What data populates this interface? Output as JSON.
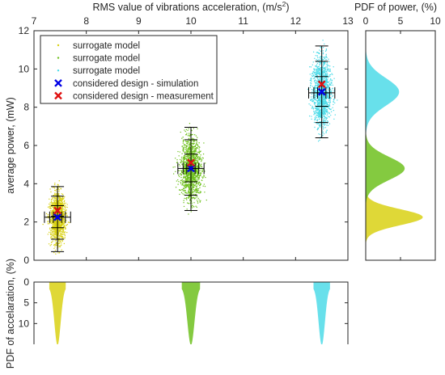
{
  "chart_data": [
    {
      "type": "scatter",
      "id": "main",
      "title": "",
      "xlabel": "RMS value of vibrations acceleration, (m/s",
      "xlabel_superscript": "2",
      "xlabel_suffix": ")",
      "ylabel": "average power, (mW)",
      "xlim": [
        7,
        13
      ],
      "ylim": [
        0,
        12
      ],
      "xticks": [
        7,
        8,
        9,
        10,
        11,
        12,
        13
      ],
      "yticks": [
        0,
        2,
        4,
        6,
        8,
        10,
        12
      ],
      "x_axis_position": "top",
      "grid": false,
      "legend_position": "top-left",
      "series": [
        {
          "name": "surrogate model",
          "kind": "scatter-cloud",
          "color": "#d9d114",
          "x_center": 7.45,
          "x_spread": 0.07,
          "y_center": 2.25,
          "y_min": 0.45,
          "y_max": 3.85,
          "error_bar_ticks": [
            0.45,
            1.1,
            1.7,
            2.3,
            2.85,
            3.35,
            3.85
          ]
        },
        {
          "name": "surrogate model",
          "kind": "scatter-cloud",
          "color": "#6fc11e",
          "x_center": 10.0,
          "x_spread": 0.1,
          "y_center": 4.8,
          "y_min": 2.6,
          "y_max": 6.95,
          "error_bar_ticks": [
            2.6,
            3.4,
            4.1,
            4.8,
            5.55,
            6.3,
            6.95
          ]
        },
        {
          "name": "surrogate model",
          "kind": "scatter-cloud",
          "color": "#4ddbe8",
          "x_center": 12.5,
          "x_spread": 0.09,
          "y_center": 8.75,
          "y_min": 6.4,
          "y_max": 11.2,
          "error_bar_ticks": [
            6.4,
            7.2,
            8.05,
            8.75,
            9.6,
            10.4,
            11.2
          ]
        },
        {
          "name": "considered design - simulation",
          "kind": "marker-x",
          "color": "#0000e6",
          "points": [
            [
              7.45,
              2.25
            ],
            [
              10.0,
              4.8
            ],
            [
              12.5,
              8.8
            ]
          ]
        },
        {
          "name": "considered design - measurement",
          "kind": "marker-x",
          "color": "#e01010",
          "points": [
            [
              7.45,
              2.6
            ],
            [
              10.0,
              5.1
            ],
            [
              12.5,
              9.2
            ]
          ]
        }
      ]
    },
    {
      "type": "area",
      "id": "pdf_power",
      "title": "",
      "xlabel": "PDF of power, (%)",
      "xlim": [
        0,
        10
      ],
      "xticks": [
        0,
        5,
        10
      ],
      "ylim": [
        0,
        12
      ],
      "x_axis_position": "top",
      "series": [
        {
          "color": "#d9d114",
          "mu": 2.25,
          "sigma": 0.42,
          "peak": 8.2
        },
        {
          "color": "#6fc11e",
          "mu": 4.8,
          "sigma": 0.6,
          "peak": 5.6
        },
        {
          "color": "#4ddbe8",
          "mu": 8.8,
          "sigma": 0.72,
          "peak": 4.8
        }
      ]
    },
    {
      "type": "area",
      "id": "pdf_acceleration",
      "title": "",
      "ylabel": "PDF of accelaration, (%)",
      "ylim": [
        0,
        15
      ],
      "yticks": [
        0,
        5,
        10
      ],
      "xlim": [
        7,
        13
      ],
      "y_direction": "reversed",
      "series": [
        {
          "color": "#d9d114",
          "mu": 7.45,
          "sigma": 0.045,
          "peak": 15
        },
        {
          "color": "#6fc11e",
          "mu": 10.0,
          "sigma": 0.05,
          "peak": 15
        },
        {
          "color": "#4ddbe8",
          "mu": 12.5,
          "sigma": 0.045,
          "peak": 15
        }
      ]
    }
  ]
}
